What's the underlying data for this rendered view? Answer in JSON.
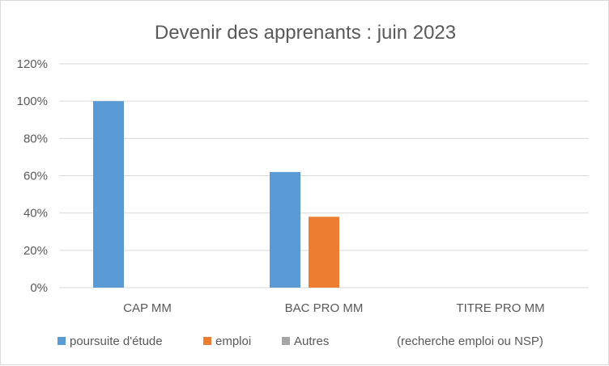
{
  "chart_data": {
    "type": "bar",
    "title": "Devenir des apprenants : juin 2023",
    "categories": [
      "CAP MM",
      "BAC PRO MM",
      "TITRE PRO MM"
    ],
    "series": [
      {
        "name": "poursuite d'étude",
        "values": [
          1.0,
          0.62,
          0
        ],
        "color": "#5b9bd5"
      },
      {
        "name": "emploi",
        "values": [
          0,
          0.38,
          0
        ],
        "color": "#ed7d31"
      },
      {
        "name": "Autres",
        "values": [
          0,
          0,
          0
        ],
        "color": "#a5a5a5"
      }
    ],
    "legend_note": "(recherche emploi ou NSP)",
    "ylim": [
      0,
      1.2
    ],
    "yticks": [
      "0%",
      "20%",
      "40%",
      "60%",
      "80%",
      "100%",
      "120%"
    ],
    "grid": true,
    "legend_position": "bottom"
  }
}
